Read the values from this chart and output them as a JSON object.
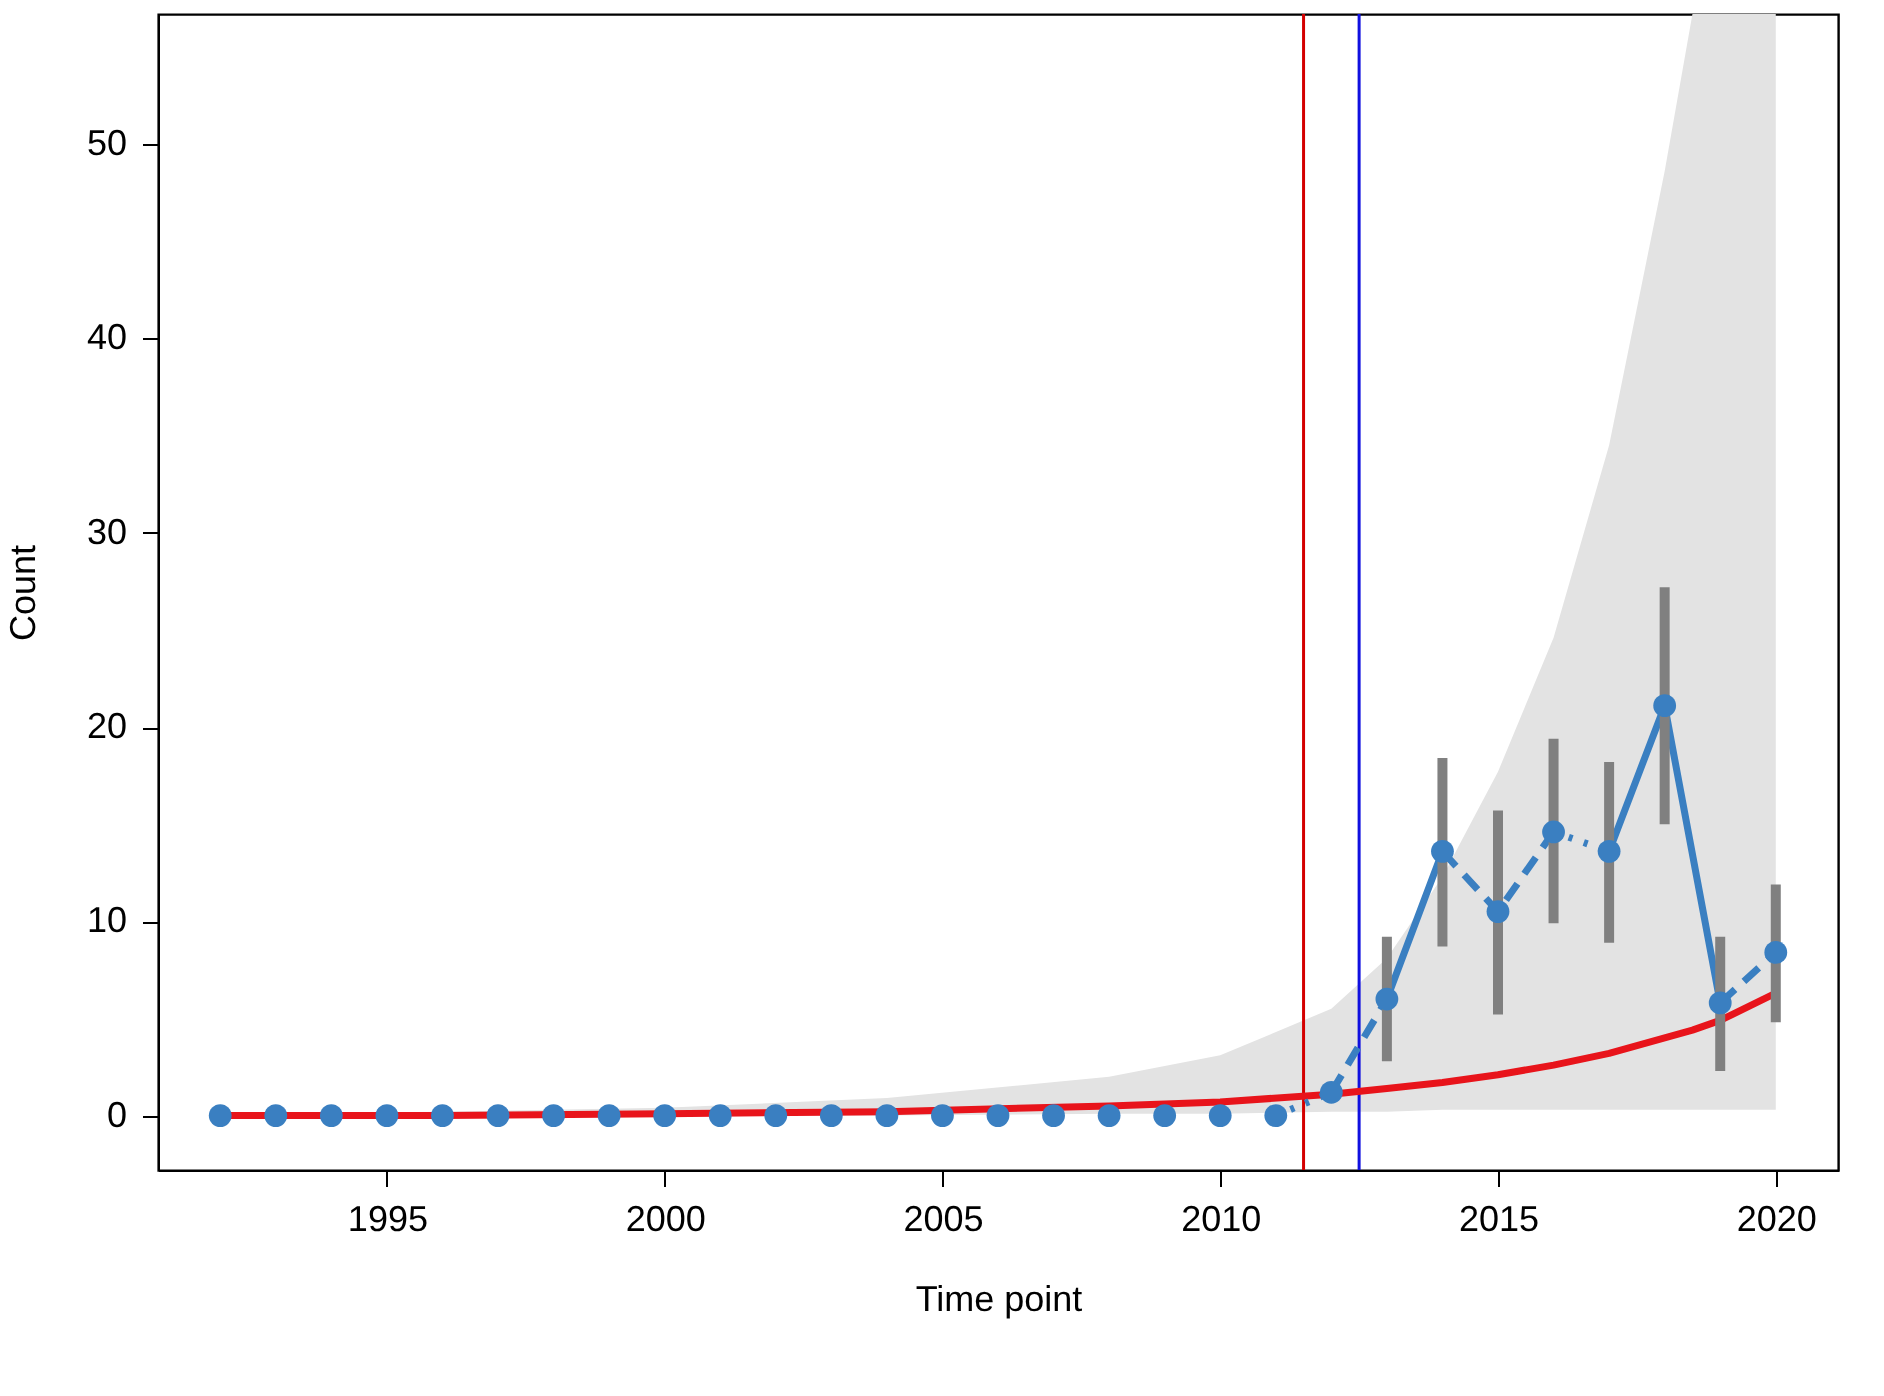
{
  "chart_data": {
    "type": "scatter",
    "xlabel": "Time point",
    "ylabel": "Count",
    "xlim": [
      1990.88,
      2021.12
    ],
    "ylim": [
      -2.8,
      56.7
    ],
    "xticks": [
      1995,
      2000,
      2005,
      2010,
      2015,
      2020
    ],
    "yticks": [
      0,
      10,
      20,
      30,
      40,
      50
    ],
    "grid": false,
    "ref_lines": [
      {
        "axis": "x",
        "value": 2011.5,
        "color": "#d40000"
      },
      {
        "axis": "x",
        "value": 2012.5,
        "color": "#1010e0"
      }
    ],
    "series": [
      {
        "type": "line",
        "color": "#e8141b",
        "line_style": "solid",
        "marker": "none",
        "x": [
          1992,
          1996,
          2000,
          2004,
          2008,
          2010,
          2012,
          2013,
          2014,
          2015,
          2016,
          2017,
          2018,
          2018.5,
          2019,
          2020
        ],
        "values": [
          0.0,
          0.0,
          0.1,
          0.2,
          0.5,
          0.7,
          1.1,
          1.4,
          1.7,
          2.1,
          2.6,
          3.2,
          4.0,
          4.4,
          4.9,
          6.3
        ],
        "upper": [
          0.1,
          0.2,
          0.4,
          0.9,
          2.0,
          3.1,
          5.5,
          8.1,
          12.3,
          17.7,
          24.6,
          34.5,
          48.6,
          56.7,
          56.7,
          56.7
        ],
        "lower": [
          0,
          0,
          0,
          0,
          0.1,
          0.1,
          0.2,
          0.2,
          0.3,
          0.3,
          0.3,
          0.3,
          0.3,
          0.3,
          0.3,
          0.3
        ]
      },
      {
        "type": "line",
        "color": "#3a7fc1",
        "line_style": "solid",
        "marker": "none",
        "x": [
          2013,
          2014,
          2015,
          2017,
          2018,
          2019
        ],
        "values": [
          6.0,
          13.6,
          null,
          13.6,
          21.1,
          5.8
        ]
      },
      {
        "type": "line",
        "color": "#3a7fc1",
        "line_style": "dashed",
        "marker": "none",
        "x": [
          2012,
          2013,
          2013.5,
          2014,
          2015,
          2016,
          2017,
          2019,
          2020
        ],
        "values": [
          1.2,
          6.0,
          null,
          13.6,
          10.5,
          14.6,
          null,
          5.8,
          8.4
        ]
      },
      {
        "type": "line",
        "color": "#3a7fc1",
        "line_style": "dotted",
        "marker": "none",
        "x": [
          2011,
          2012,
          2014,
          2016,
          2017
        ],
        "values": [
          0,
          1.2,
          null,
          14.6,
          13.6
        ]
      },
      {
        "color": "#3a7fc1",
        "marker": "circle",
        "x": [
          1992,
          1993,
          1994,
          1995,
          1996,
          1997,
          1998,
          1999,
          2000,
          2001,
          2002,
          2003,
          2004,
          2005,
          2006,
          2007,
          2008,
          2009,
          2010,
          2011,
          2012,
          2013,
          2014,
          2015,
          2016,
          2017,
          2018,
          2019,
          2020
        ],
        "values": [
          0,
          0,
          0,
          0,
          0,
          0,
          0,
          0,
          0,
          0,
          0,
          0,
          0,
          0,
          0,
          0,
          0,
          0,
          0,
          0,
          1.2,
          6.0,
          13.6,
          10.5,
          14.6,
          13.6,
          21.1,
          5.8,
          8.4
        ],
        "errors": [
          null,
          null,
          null,
          null,
          null,
          null,
          null,
          null,
          null,
          null,
          null,
          null,
          null,
          null,
          null,
          null,
          null,
          null,
          null,
          null,
          null,
          [
            2.8,
            9.2
          ],
          [
            8.7,
            18.4
          ],
          [
            5.2,
            15.7
          ],
          [
            9.9,
            19.4
          ],
          [
            8.9,
            18.2
          ],
          [
            15.0,
            27.2
          ],
          [
            2.3,
            9.2
          ],
          [
            4.8,
            11.9
          ]
        ]
      }
    ]
  }
}
